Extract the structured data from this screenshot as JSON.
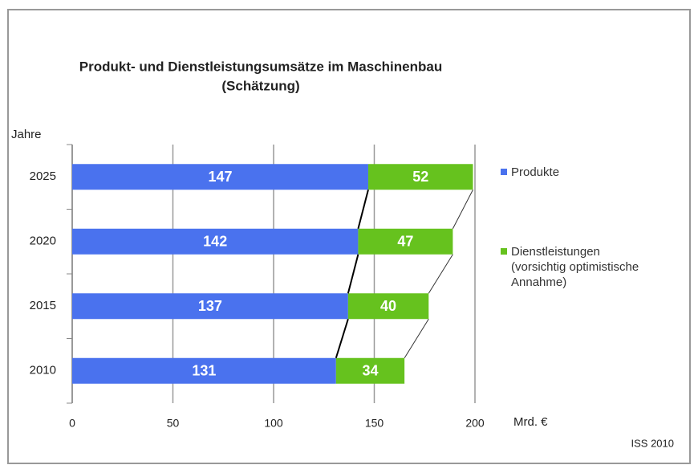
{
  "chart_data": {
    "type": "stacked_bar_horizontal",
    "title": [
      "Produkt- und Dienstleistungsumsätze im Maschinenbau",
      "(Schätzung)"
    ],
    "y_label": "Jahre",
    "x_label": "Mrd. €",
    "source": "ISS 2010",
    "categories": [
      "2010",
      "2015",
      "2020",
      "2025"
    ],
    "series": [
      {
        "name": "Produkte",
        "color": "#4a72ee",
        "values": [
          131,
          137,
          142,
          147
        ]
      },
      {
        "name": "Dienstleistungen\n(vorsichtig optimistische\nAnnahme)",
        "color": "#66c21e",
        "values": [
          34,
          40,
          47,
          52
        ]
      }
    ],
    "xlim": [
      0,
      200
    ],
    "xticks": [
      0,
      50,
      100,
      150,
      200
    ],
    "grid": true,
    "legend": "right"
  }
}
